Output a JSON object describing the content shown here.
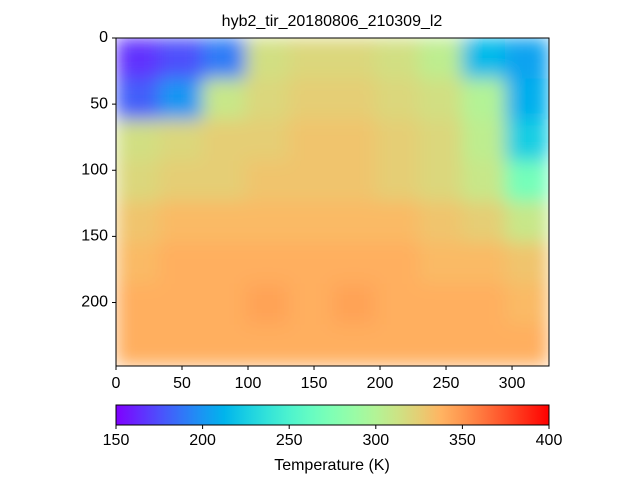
{
  "chart_data": {
    "type": "image",
    "title": "hyb2_tir_20180806_210309_l2",
    "cmap": "rainbow",
    "xlim": [
      0,
      328
    ],
    "ylim": [
      248,
      0
    ],
    "xticks": [
      0,
      50,
      100,
      150,
      200,
      250,
      300
    ],
    "yticks": [
      0,
      50,
      100,
      150,
      200
    ],
    "z": [
      [
        165,
        175,
        190,
        315,
        320,
        320,
        315,
        305,
        215,
        205
      ],
      [
        180,
        200,
        310,
        320,
        325,
        325,
        320,
        315,
        300,
        210
      ],
      [
        315,
        320,
        325,
        325,
        330,
        330,
        325,
        320,
        305,
        225
      ],
      [
        320,
        325,
        325,
        330,
        330,
        330,
        325,
        320,
        310,
        270
      ],
      [
        330,
        335,
        335,
        335,
        335,
        335,
        335,
        330,
        325,
        310
      ],
      [
        335,
        340,
        340,
        340,
        340,
        340,
        340,
        335,
        335,
        330
      ],
      [
        340,
        340,
        340,
        345,
        340,
        345,
        340,
        340,
        340,
        335
      ],
      [
        340,
        340,
        340,
        340,
        340,
        340,
        340,
        340,
        340,
        340
      ]
    ],
    "clim": [
      150,
      400
    ],
    "cticks": [
      150,
      200,
      250,
      300,
      350,
      400
    ],
    "clabel": "Temperature (K)"
  }
}
